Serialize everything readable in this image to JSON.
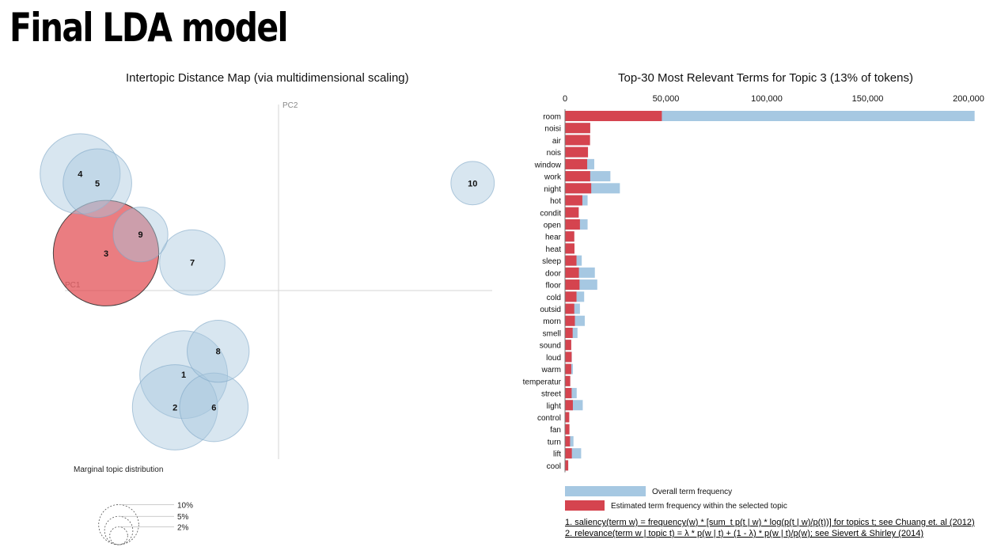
{
  "slide": {
    "title": "Final LDA model"
  },
  "chart_data": [
    {
      "type": "scatter",
      "title": "Intertopic Distance Map (via multidimensional scaling)",
      "xlabel": "PC1",
      "ylabel": "PC2",
      "selected_topic": "3",
      "colors": {
        "bubble": "#a9c7de",
        "selected": "#e24b50",
        "stroke": "#7fa6c6"
      },
      "topics": [
        {
          "id": "1",
          "x": -0.22,
          "y": -0.18,
          "size": 9.0
        },
        {
          "id": "2",
          "x": -0.24,
          "y": -0.25,
          "size": 8.5
        },
        {
          "id": "3",
          "x": -0.4,
          "y": 0.08,
          "size": 13.0
        },
        {
          "id": "4",
          "x": -0.46,
          "y": 0.25,
          "size": 7.5
        },
        {
          "id": "5",
          "x": -0.42,
          "y": 0.23,
          "size": 5.5
        },
        {
          "id": "6",
          "x": -0.15,
          "y": -0.25,
          "size": 5.5
        },
        {
          "id": "7",
          "x": -0.2,
          "y": 0.06,
          "size": 5.0
        },
        {
          "id": "8",
          "x": -0.14,
          "y": -0.13,
          "size": 4.5
        },
        {
          "id": "9",
          "x": -0.32,
          "y": 0.12,
          "size": 3.5
        },
        {
          "id": "10",
          "x": 0.45,
          "y": 0.23,
          "size": 2.2
        }
      ],
      "legend": {
        "title": "Marginal topic distribution",
        "items": [
          {
            "label": "2%",
            "value": 2
          },
          {
            "label": "5%",
            "value": 5
          },
          {
            "label": "10%",
            "value": 10
          }
        ]
      }
    },
    {
      "type": "bar",
      "orientation": "horizontal",
      "title": "Top-30 Most Relevant Terms for Topic 3 (13% of tokens)",
      "xlim": [
        0,
        200000
      ],
      "xticks": [
        "0",
        "50,000",
        "100,000",
        "150,000",
        "200,000"
      ],
      "xtick_values": [
        0,
        50000,
        100000,
        150000,
        200000
      ],
      "colors": {
        "overall": "#a6c8e2",
        "topic": "#d5444f"
      },
      "series": [
        {
          "name": "Overall term frequency",
          "values": [
            203000,
            12500,
            12400,
            11400,
            14500,
            22500,
            27200,
            11200,
            6800,
            11200,
            4600,
            4700,
            8300,
            14800,
            16000,
            9500,
            7400,
            9800,
            6200,
            3100,
            3400,
            3900,
            2600,
            5800,
            8800,
            2100,
            2200,
            4200,
            8000,
            1600
          ]
        },
        {
          "name": "Estimated term frequency within the selected topic",
          "values": [
            48000,
            12500,
            12400,
            11400,
            11000,
            12500,
            13000,
            8600,
            6800,
            7400,
            4600,
            4700,
            5700,
            6900,
            7200,
            5700,
            4600,
            4900,
            3800,
            3100,
            3300,
            3100,
            2600,
            3300,
            3900,
            2100,
            2200,
            2500,
            3400,
            1600
          ]
        }
      ],
      "categories": [
        "room",
        "noisi",
        "air",
        "nois",
        "window",
        "work",
        "night",
        "hot",
        "condit",
        "open",
        "hear",
        "heat",
        "sleep",
        "door",
        "floor",
        "cold",
        "outsid",
        "morn",
        "smell",
        "sound",
        "loud",
        "warm",
        "temperatur",
        "street",
        "light",
        "control",
        "fan",
        "turn",
        "lift",
        "cool"
      ],
      "footnotes": [
        "1. saliency(term w) = frequency(w) * [sum_t p(t | w) * log(p(t | w)/p(t))] for topics t; see Chuang et. al (2012)",
        "2. relevance(term w | topic t) = λ * p(w | t) + (1 - λ) * p(w | t)/p(w); see Sievert & Shirley (2014)"
      ]
    }
  ]
}
